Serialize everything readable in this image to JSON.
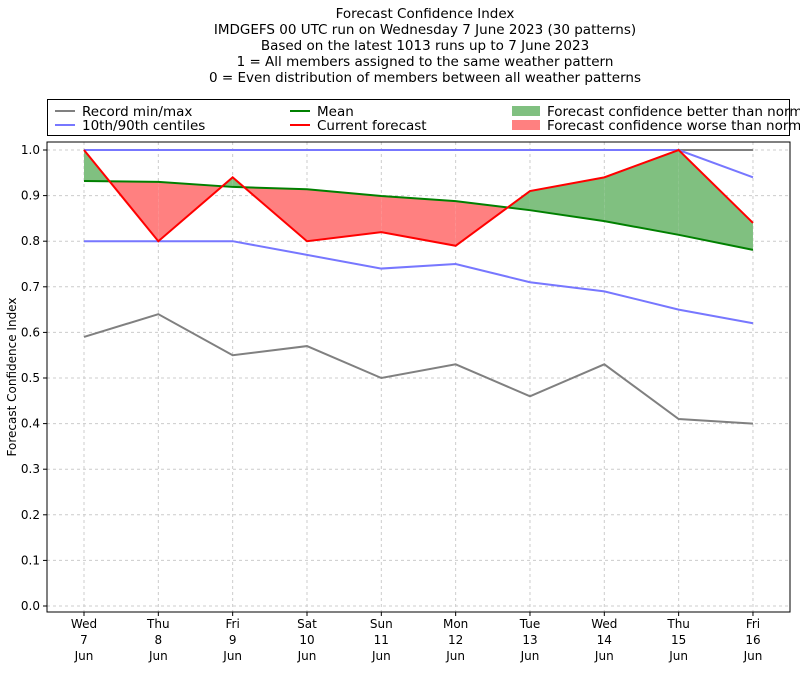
{
  "chart_data": {
    "type": "line",
    "title_lines": [
      "Forecast Confidence Index",
      "IMDGEFS 00 UTC run on Wednesday 7 June 2023 (30 patterns)",
      "Based on the latest 1013 runs up to 7 June 2023",
      "1 = All members assigned to the same weather pattern",
      "0 = Even distribution of members between all weather patterns"
    ],
    "ylabel": "Forecast Confidence Index",
    "xlabel": "",
    "ylim": [
      0,
      1
    ],
    "yticks": [
      "0.0",
      "0.1",
      "0.2",
      "0.3",
      "0.4",
      "0.5",
      "0.6",
      "0.7",
      "0.8",
      "0.9",
      "1.0"
    ],
    "categories": [
      [
        "Wed",
        "7",
        "Jun"
      ],
      [
        "Thu",
        "8",
        "Jun"
      ],
      [
        "Fri",
        "9",
        "Jun"
      ],
      [
        "Sat",
        "10",
        "Jun"
      ],
      [
        "Sun",
        "11",
        "Jun"
      ],
      [
        "Mon",
        "12",
        "Jun"
      ],
      [
        "Tue",
        "13",
        "Jun"
      ],
      [
        "Wed",
        "14",
        "Jun"
      ],
      [
        "Thu",
        "15",
        "Jun"
      ],
      [
        "Fri",
        "16",
        "Jun"
      ]
    ],
    "grid": true,
    "legend_position": "top",
    "legend": [
      {
        "label": "Record min/max",
        "kind": "line",
        "color": "#808080"
      },
      {
        "label": "Mean",
        "kind": "line",
        "color": "#008000"
      },
      {
        "label": "Forecast confidence better than normal",
        "kind": "patch",
        "color": "#80c080"
      },
      {
        "label": "10th/90th centiles",
        "kind": "line",
        "color": "#7777ff"
      },
      {
        "label": "Current forecast",
        "kind": "line",
        "color": "#ff0000"
      },
      {
        "label": "Forecast confidence worse than normal",
        "kind": "patch",
        "color": "#ff8080"
      }
    ],
    "series": {
      "record_max": [
        1.0,
        1.0,
        1.0,
        1.0,
        1.0,
        1.0,
        1.0,
        1.0,
        1.0,
        1.0
      ],
      "record_min": [
        0.59,
        0.64,
        0.55,
        0.57,
        0.5,
        0.53,
        0.46,
        0.53,
        0.41,
        0.4
      ],
      "centile_90": [
        1.0,
        1.0,
        1.0,
        1.0,
        1.0,
        1.0,
        1.0,
        1.0,
        1.0,
        0.94
      ],
      "centile_10": [
        0.8,
        0.8,
        0.8,
        0.77,
        0.74,
        0.75,
        0.71,
        0.69,
        0.65,
        0.62
      ],
      "mean": [
        0.932,
        0.93,
        0.919,
        0.914,
        0.899,
        0.888,
        0.868,
        0.844,
        0.814,
        0.781
      ],
      "current": [
        1.0,
        0.8,
        0.94,
        0.8,
        0.82,
        0.79,
        0.91,
        0.94,
        1.0,
        0.84
      ]
    },
    "colors": {
      "record": "#808080",
      "centile": "#7777ff",
      "mean": "#008000",
      "current": "#ff0000",
      "better": "#80c080",
      "worse": "#ff8080"
    }
  }
}
